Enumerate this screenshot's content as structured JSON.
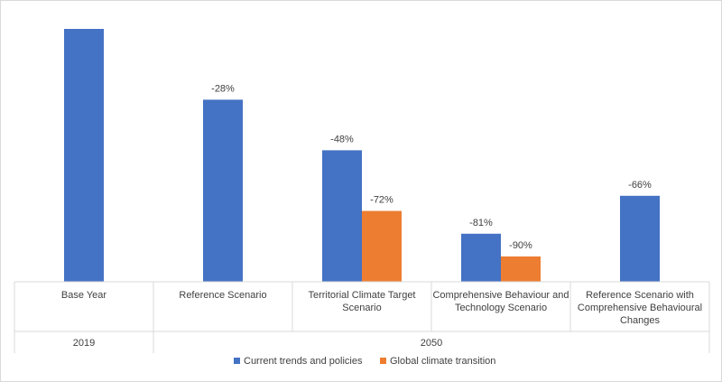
{
  "chart_data": {
    "type": "bar",
    "categories": [
      "Base Year",
      "Reference Scenario",
      "Territorial Climate Target Scenario",
      "Comprehensive Behaviour and Technology Scenario",
      "Reference Scenario with Comprehensive Behavioural Changes"
    ],
    "groups": [
      {
        "label": "2019",
        "categories": [
          "Base Year"
        ]
      },
      {
        "label": "2050",
        "categories": [
          "Reference Scenario",
          "Territorial Climate Target Scenario",
          "Comprehensive Behaviour and Technology Scenario",
          "Reference Scenario with Comprehensive Behavioural Changes"
        ]
      }
    ],
    "series": [
      {
        "name": "Current trends and policies",
        "color": "#4472c4",
        "values": [
          100,
          72,
          52,
          19,
          34
        ],
        "labels": [
          "",
          "-28%",
          "-48%",
          "-81%",
          "-66%"
        ]
      },
      {
        "name": "Global climate transition",
        "color": "#ed7d31",
        "values": [
          null,
          null,
          28,
          10,
          null
        ],
        "labels": [
          "",
          "",
          "-72%",
          "-90%",
          ""
        ]
      }
    ],
    "ylim": [
      0,
      100
    ],
    "grid": false,
    "legend": "bottom"
  }
}
